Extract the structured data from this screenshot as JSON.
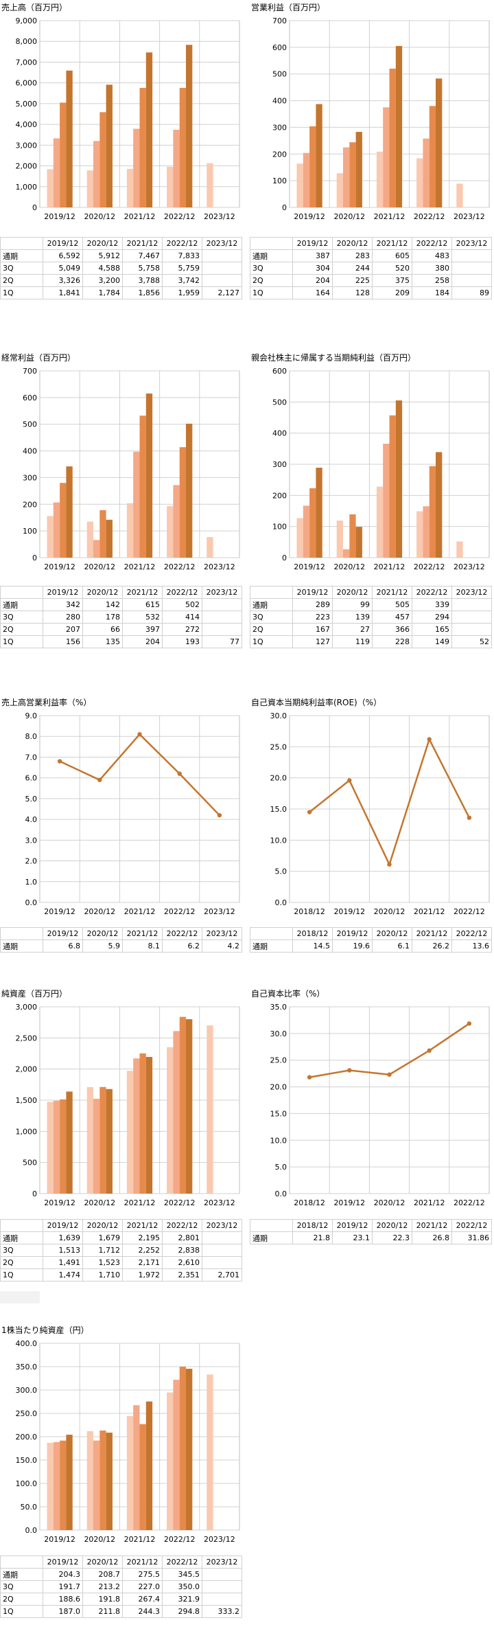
{
  "chart_data": [
    {
      "id": "sales",
      "type": "bar",
      "title": "売上高（百万円）",
      "categories": [
        "2019/12",
        "2020/12",
        "2021/12",
        "2022/12",
        "2023/12"
      ],
      "ylim": [
        0,
        9000
      ],
      "ytick_step": 1000,
      "ytick_decimals": 0,
      "ytick_comma": true,
      "series": [
        {
          "name": "1Q",
          "color": "#f9c9b0",
          "values": [
            1841,
            1784,
            1856,
            1959,
            2127
          ]
        },
        {
          "name": "2Q",
          "color": "#f4a886",
          "values": [
            3326,
            3200,
            3788,
            3742,
            null
          ]
        },
        {
          "name": "3Q",
          "color": "#e68a4c",
          "values": [
            5049,
            4588,
            5758,
            5759,
            null
          ]
        },
        {
          "name": "通期",
          "color": "#c4752d",
          "values": [
            6592,
            5912,
            7467,
            7833,
            null
          ]
        }
      ],
      "table": {
        "headers": [
          "2019/12",
          "2020/12",
          "2021/12",
          "2022/12",
          "2023/12"
        ],
        "rows": [
          {
            "label": "通期",
            "cells": [
              "6,592",
              "5,912",
              "7,467",
              "7,833",
              ""
            ]
          },
          {
            "label": "3Q",
            "cells": [
              "5,049",
              "4,588",
              "5,758",
              "5,759",
              ""
            ]
          },
          {
            "label": "2Q",
            "cells": [
              "3,326",
              "3,200",
              "3,788",
              "3,742",
              ""
            ]
          },
          {
            "label": "1Q",
            "cells": [
              "1,841",
              "1,784",
              "1,856",
              "1,959",
              "2,127"
            ]
          }
        ]
      }
    },
    {
      "id": "op_income",
      "type": "bar",
      "title": "営業利益（百万円）",
      "categories": [
        "2019/12",
        "2020/12",
        "2021/12",
        "2022/12",
        "2023/12"
      ],
      "ylim": [
        0,
        700
      ],
      "ytick_step": 100,
      "ytick_decimals": 0,
      "ytick_comma": true,
      "series": [
        {
          "name": "1Q",
          "color": "#f9c9b0",
          "values": [
            164,
            128,
            209,
            184,
            89
          ]
        },
        {
          "name": "2Q",
          "color": "#f4a886",
          "values": [
            204,
            225,
            375,
            258,
            null
          ]
        },
        {
          "name": "3Q",
          "color": "#e68a4c",
          "values": [
            304,
            244,
            520,
            380,
            null
          ]
        },
        {
          "name": "通期",
          "color": "#c4752d",
          "values": [
            387,
            283,
            605,
            483,
            null
          ]
        }
      ],
      "table": {
        "headers": [
          "2019/12",
          "2020/12",
          "2021/12",
          "2022/12",
          "2023/12"
        ],
        "rows": [
          {
            "label": "通期",
            "cells": [
              "387",
              "283",
              "605",
              "483",
              ""
            ]
          },
          {
            "label": "3Q",
            "cells": [
              "304",
              "244",
              "520",
              "380",
              ""
            ]
          },
          {
            "label": "2Q",
            "cells": [
              "204",
              "225",
              "375",
              "258",
              ""
            ]
          },
          {
            "label": "1Q",
            "cells": [
              "164",
              "128",
              "209",
              "184",
              "89"
            ]
          }
        ]
      }
    },
    {
      "id": "ord_income",
      "type": "bar",
      "title": "経常利益（百万円）",
      "categories": [
        "2019/12",
        "2020/12",
        "2021/12",
        "2022/12",
        "2023/12"
      ],
      "ylim": [
        0,
        700
      ],
      "ytick_step": 100,
      "ytick_decimals": 0,
      "ytick_comma": true,
      "series": [
        {
          "name": "1Q",
          "color": "#f9c9b0",
          "values": [
            156,
            135,
            204,
            193,
            77
          ]
        },
        {
          "name": "2Q",
          "color": "#f4a886",
          "values": [
            207,
            66,
            397,
            272,
            null
          ]
        },
        {
          "name": "3Q",
          "color": "#e68a4c",
          "values": [
            280,
            178,
            532,
            414,
            null
          ]
        },
        {
          "name": "通期",
          "color": "#c4752d",
          "values": [
            342,
            142,
            615,
            502,
            null
          ]
        }
      ],
      "table": {
        "headers": [
          "2019/12",
          "2020/12",
          "2021/12",
          "2022/12",
          "2023/12"
        ],
        "rows": [
          {
            "label": "通期",
            "cells": [
              "342",
              "142",
              "615",
              "502",
              ""
            ]
          },
          {
            "label": "3Q",
            "cells": [
              "280",
              "178",
              "532",
              "414",
              ""
            ]
          },
          {
            "label": "2Q",
            "cells": [
              "207",
              "66",
              "397",
              "272",
              ""
            ]
          },
          {
            "label": "1Q",
            "cells": [
              "156",
              "135",
              "204",
              "193",
              "77"
            ]
          }
        ]
      }
    },
    {
      "id": "net_income",
      "type": "bar",
      "title": "親会社株主に帰属する当期純利益（百万円）",
      "categories": [
        "2019/12",
        "2020/12",
        "2021/12",
        "2022/12",
        "2023/12"
      ],
      "ylim": [
        0,
        600
      ],
      "ytick_step": 100,
      "ytick_decimals": 0,
      "ytick_comma": true,
      "series": [
        {
          "name": "1Q",
          "color": "#f9c9b0",
          "values": [
            127,
            119,
            228,
            149,
            52
          ]
        },
        {
          "name": "2Q",
          "color": "#f4a886",
          "values": [
            167,
            27,
            366,
            165,
            null
          ]
        },
        {
          "name": "3Q",
          "color": "#e68a4c",
          "values": [
            223,
            139,
            457,
            294,
            null
          ]
        },
        {
          "name": "通期",
          "color": "#c4752d",
          "values": [
            289,
            99,
            505,
            339,
            null
          ]
        }
      ],
      "table": {
        "headers": [
          "2019/12",
          "2020/12",
          "2021/12",
          "2022/12",
          "2023/12"
        ],
        "rows": [
          {
            "label": "通期",
            "cells": [
              "289",
              "99",
              "505",
              "339",
              ""
            ]
          },
          {
            "label": "3Q",
            "cells": [
              "223",
              "139",
              "457",
              "294",
              ""
            ]
          },
          {
            "label": "2Q",
            "cells": [
              "167",
              "27",
              "366",
              "165",
              ""
            ]
          },
          {
            "label": "1Q",
            "cells": [
              "127",
              "119",
              "228",
              "149",
              "52"
            ]
          }
        ]
      }
    },
    {
      "id": "op_margin",
      "type": "line",
      "title": "売上高営業利益率（%）",
      "categories": [
        "2019/12",
        "2020/12",
        "2021/12",
        "2022/12",
        "2023/12"
      ],
      "ylim": [
        0,
        9
      ],
      "ytick_step": 1,
      "ytick_decimals": 1,
      "ytick_comma": false,
      "series": [
        {
          "name": "通期",
          "color": "#c4752d",
          "values": [
            6.8,
            5.9,
            8.1,
            6.2,
            4.2
          ]
        }
      ],
      "table": {
        "headers": [
          "2019/12",
          "2020/12",
          "2021/12",
          "2022/12",
          "2023/12"
        ],
        "rows": [
          {
            "label": "通期",
            "cells": [
              "6.8",
              "5.9",
              "8.1",
              "6.2",
              "4.2"
            ]
          }
        ]
      }
    },
    {
      "id": "roe",
      "type": "line",
      "title": "自己資本当期純利益率(ROE)（%）",
      "categories": [
        "2018/12",
        "2019/12",
        "2020/12",
        "2021/12",
        "2022/12"
      ],
      "ylim": [
        0,
        30
      ],
      "ytick_step": 5,
      "ytick_decimals": 1,
      "ytick_comma": false,
      "series": [
        {
          "name": "通期",
          "color": "#c4752d",
          "values": [
            14.5,
            19.6,
            6.1,
            26.2,
            13.6
          ]
        }
      ],
      "table": {
        "headers": [
          "2018/12",
          "2019/12",
          "2020/12",
          "2021/12",
          "2022/12"
        ],
        "rows": [
          {
            "label": "通期",
            "cells": [
              "14.5",
              "19.6",
              "6.1",
              "26.2",
              "13.6"
            ]
          }
        ]
      }
    },
    {
      "id": "net_assets",
      "type": "bar",
      "title": "純資産（百万円）",
      "categories": [
        "2019/12",
        "2020/12",
        "2021/12",
        "2022/12",
        "2023/12"
      ],
      "ylim": [
        0,
        3000
      ],
      "ytick_step": 500,
      "ytick_decimals": 0,
      "ytick_comma": true,
      "series": [
        {
          "name": "1Q",
          "color": "#f9c9b0",
          "values": [
            1474,
            1710,
            1972,
            2351,
            2701
          ]
        },
        {
          "name": "2Q",
          "color": "#f4a886",
          "values": [
            1491,
            1523,
            2171,
            2610,
            null
          ]
        },
        {
          "name": "3Q",
          "color": "#e68a4c",
          "values": [
            1513,
            1712,
            2252,
            2838,
            null
          ]
        },
        {
          "name": "通期",
          "color": "#c4752d",
          "values": [
            1639,
            1679,
            2195,
            2801,
            null
          ]
        }
      ],
      "table": {
        "headers": [
          "2019/12",
          "2020/12",
          "2021/12",
          "2022/12",
          "2023/12"
        ],
        "rows": [
          {
            "label": "通期",
            "cells": [
              "1,639",
              "1,679",
              "2,195",
              "2,801",
              ""
            ]
          },
          {
            "label": "3Q",
            "cells": [
              "1,513",
              "1,712",
              "2,252",
              "2,838",
              ""
            ]
          },
          {
            "label": "2Q",
            "cells": [
              "1,491",
              "1,523",
              "2,171",
              "2,610",
              ""
            ]
          },
          {
            "label": "1Q",
            "cells": [
              "1,474",
              "1,710",
              "1,972",
              "2,351",
              "2,701"
            ]
          }
        ]
      }
    },
    {
      "id": "equity_ratio",
      "type": "line",
      "title": "自己資本比率（%）",
      "categories": [
        "2018/12",
        "2019/12",
        "2020/12",
        "2021/12",
        "2022/12"
      ],
      "ylim": [
        0,
        35
      ],
      "ytick_step": 5,
      "ytick_decimals": 1,
      "ytick_comma": false,
      "series": [
        {
          "name": "通期",
          "color": "#c4752d",
          "values": [
            21.8,
            23.1,
            22.3,
            26.8,
            31.86
          ]
        }
      ],
      "table": {
        "headers": [
          "2018/12",
          "2019/12",
          "2020/12",
          "2021/12",
          "2022/12"
        ],
        "rows": [
          {
            "label": "通期",
            "cells": [
              "21.8",
              "23.1",
              "22.3",
              "26.8",
              "31.86"
            ]
          }
        ]
      }
    },
    {
      "id": "bps",
      "type": "bar",
      "title": "1株当たり純資産（円）",
      "categories": [
        "2019/12",
        "2020/12",
        "2021/12",
        "2022/12",
        "2023/12"
      ],
      "ylim": [
        0,
        400
      ],
      "ytick_step": 50,
      "ytick_decimals": 1,
      "ytick_comma": false,
      "series": [
        {
          "name": "1Q",
          "color": "#f9c9b0",
          "values": [
            187.0,
            211.8,
            244.3,
            294.8,
            333.2
          ]
        },
        {
          "name": "2Q",
          "color": "#f4a886",
          "values": [
            188.6,
            191.8,
            267.4,
            321.9,
            null
          ]
        },
        {
          "name": "3Q",
          "color": "#e68a4c",
          "values": [
            191.7,
            213.2,
            227.0,
            350.0,
            null
          ]
        },
        {
          "name": "通期",
          "color": "#c4752d",
          "values": [
            204.3,
            208.7,
            275.5,
            345.5,
            null
          ]
        }
      ],
      "table": {
        "headers": [
          "2019/12",
          "2020/12",
          "2021/12",
          "2022/12",
          "2023/12"
        ],
        "rows": [
          {
            "label": "通期",
            "cells": [
              "204.3",
              "208.7",
              "275.5",
              "345.5",
              ""
            ]
          },
          {
            "label": "3Q",
            "cells": [
              "191.7",
              "213.2",
              "227.0",
              "350.0",
              ""
            ]
          },
          {
            "label": "2Q",
            "cells": [
              "188.6",
              "191.8",
              "267.4",
              "321.9",
              ""
            ]
          },
          {
            "label": "1Q",
            "cells": [
              "187.0",
              "211.8",
              "244.3",
              "294.8",
              "333.2"
            ]
          }
        ]
      }
    }
  ]
}
